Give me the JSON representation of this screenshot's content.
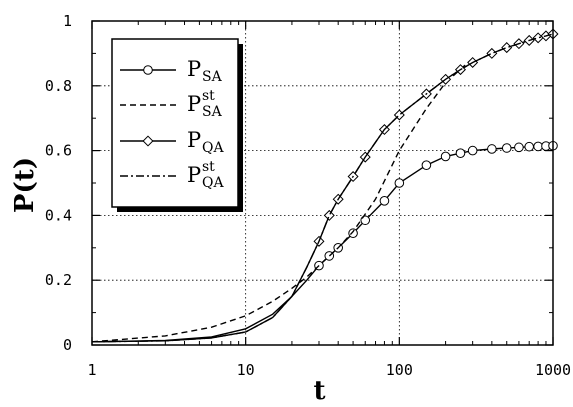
{
  "chart_data": {
    "type": "line",
    "xscale": "log",
    "xlim": [
      1,
      1000
    ],
    "ylim": [
      0,
      1
    ],
    "xlabel": "t",
    "ylabel": "P(t)",
    "grid": true,
    "legend_position": "top-left",
    "xticks": [
      {
        "value": 1,
        "label": "1"
      },
      {
        "value": 10,
        "label": "10"
      },
      {
        "value": 100,
        "label": "100"
      },
      {
        "value": 1000,
        "label": "1000"
      }
    ],
    "yticks": [
      {
        "value": 0,
        "label": "0"
      },
      {
        "value": 0.2,
        "label": "0.2"
      },
      {
        "value": 0.4,
        "label": "0.4"
      },
      {
        "value": 0.6,
        "label": "0.6"
      },
      {
        "value": 0.8,
        "label": "0.8"
      },
      {
        "value": 1,
        "label": "1"
      }
    ],
    "series": [
      {
        "name": "P_SA",
        "legend_main": "P",
        "legend_sub": "SA",
        "legend_sup": "",
        "line_style": "solid",
        "marker": "circle",
        "x": [
          1,
          3,
          6,
          10,
          15,
          20,
          25,
          30,
          35,
          40,
          50,
          60,
          80,
          100,
          150,
          200,
          250,
          300,
          400,
          500,
          600,
          700,
          800,
          900,
          1000
        ],
        "y": [
          0.01,
          0.014,
          0.025,
          0.05,
          0.095,
          0.15,
          0.2,
          0.245,
          0.275,
          0.3,
          0.345,
          0.385,
          0.445,
          0.5,
          0.555,
          0.582,
          0.592,
          0.6,
          0.605,
          0.608,
          0.61,
          0.612,
          0.613,
          0.614,
          0.615
        ]
      },
      {
        "name": "P_SA^st",
        "legend_main": "P",
        "legend_sub": "SA",
        "legend_sup": "st",
        "line_style": "dashed",
        "marker": "none",
        "x": [
          1,
          3,
          6,
          10,
          15,
          20,
          25,
          30,
          40,
          50,
          70,
          100,
          150,
          200,
          300
        ],
        "y": [
          0.01,
          0.028,
          0.055,
          0.09,
          0.135,
          0.175,
          0.21,
          0.245,
          0.3,
          0.35,
          0.45,
          0.6,
          0.73,
          0.81,
          0.885
        ]
      },
      {
        "name": "P_QA",
        "legend_main": "P",
        "legend_sub": "QA",
        "legend_sup": "",
        "line_style": "solid",
        "marker": "diamond",
        "x": [
          1,
          3,
          6,
          10,
          15,
          20,
          25,
          30,
          35,
          40,
          50,
          60,
          80,
          100,
          150,
          200,
          250,
          300,
          400,
          500,
          600,
          700,
          800,
          900,
          1000
        ],
        "y": [
          0.01,
          0.013,
          0.022,
          0.04,
          0.085,
          0.15,
          0.24,
          0.32,
          0.4,
          0.45,
          0.52,
          0.58,
          0.665,
          0.71,
          0.775,
          0.82,
          0.85,
          0.872,
          0.9,
          0.918,
          0.93,
          0.94,
          0.948,
          0.954,
          0.96
        ]
      },
      {
        "name": "P_QA^st",
        "legend_main": "P",
        "legend_sub": "QA",
        "legend_sup": "st",
        "line_style": "dash-dot",
        "marker": "none",
        "x": [
          1,
          3,
          6,
          10,
          15,
          20,
          25,
          30,
          35,
          40,
          50,
          60,
          80,
          100,
          150,
          200,
          250,
          300,
          400,
          500,
          600,
          700,
          800,
          900,
          1000
        ],
        "y": [
          0.01,
          0.013,
          0.022,
          0.04,
          0.085,
          0.15,
          0.24,
          0.32,
          0.4,
          0.45,
          0.52,
          0.58,
          0.665,
          0.71,
          0.775,
          0.82,
          0.85,
          0.872,
          0.9,
          0.918,
          0.93,
          0.94,
          0.948,
          0.954,
          0.96
        ]
      }
    ]
  }
}
